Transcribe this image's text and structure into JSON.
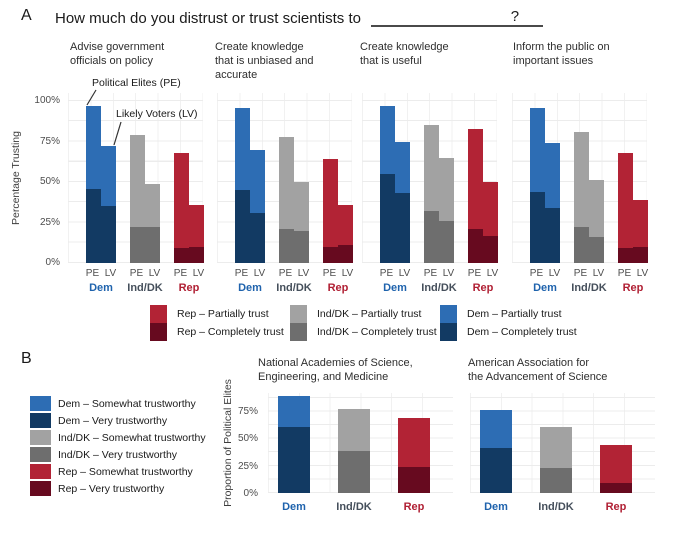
{
  "colors": {
    "dem": {
      "light": "#2d6db4",
      "dark": "#123a63",
      "text": "#1f63ad"
    },
    "ind": {
      "light": "#a2a2a2",
      "dark": "#6e6e6e",
      "text": "#454f5b"
    },
    "rep": {
      "light": "#b22335",
      "dark": "#670a1f",
      "text": "#b01f33"
    },
    "grid": "#ececec",
    "tick_text": "#4d4d4d",
    "axis_label": "#3d3d3d",
    "title_text": "#1a1a1a",
    "underline": "#4a4a4a"
  },
  "panel_a": {
    "label": "A",
    "title": "How much do you distrust or trust scientists to",
    "title_suffix": "?",
    "ylabel": "Percentage Trusting",
    "yticks": [
      "100%",
      "75%",
      "50%",
      "25%",
      "0%"
    ],
    "annotations": {
      "pe": "Political Elites (PE)",
      "lv": "Likely Voters (LV)"
    },
    "legend": {
      "columns": [
        {
          "items": [
            {
              "label": "Rep – Partially trust",
              "party": "rep",
              "shade": "light"
            },
            {
              "label": "Rep – Completely trust",
              "party": "rep",
              "shade": "dark"
            }
          ]
        },
        {
          "items": [
            {
              "label": "Ind/DK – Partially trust",
              "party": "ind",
              "shade": "light"
            },
            {
              "label": "Ind/DK – Completely trust",
              "party": "ind",
              "shade": "dark"
            }
          ]
        },
        {
          "items": [
            {
              "label": "Dem – Partially trust",
              "party": "dem",
              "shade": "light"
            },
            {
              "label": "Dem – Completely trust",
              "party": "dem",
              "shade": "dark"
            }
          ]
        }
      ]
    }
  },
  "panel_b": {
    "label": "B",
    "ylabel": "Proportion of Political Elites",
    "yticks": [
      "75%",
      "50%",
      "25%",
      "0%"
    ],
    "legend": [
      {
        "label": "Dem – Somewhat trustworthy",
        "party": "dem",
        "shade": "light"
      },
      {
        "label": "Dem – Very trustworthy",
        "party": "dem",
        "shade": "dark"
      },
      {
        "label": "Ind/DK – Somewhat trustworthy",
        "party": "ind",
        "shade": "light"
      },
      {
        "label": "Ind/DK – Very trustworthy",
        "party": "ind",
        "shade": "dark"
      },
      {
        "label": "Rep – Somewhat trustworthy",
        "party": "rep",
        "shade": "light"
      },
      {
        "label": "Rep – Very trustworthy",
        "party": "rep",
        "shade": "dark"
      }
    ]
  },
  "chart_data": [
    {
      "id": "a1",
      "panel": "A",
      "type": "bar",
      "stacked": true,
      "title": "Advise government officials on policy",
      "title_lines": [
        "Advise government",
        "officials on policy"
      ],
      "ylabel": "Percentage Trusting",
      "ylim": [
        0,
        100
      ],
      "yticks": [
        0,
        25,
        50,
        75,
        100
      ],
      "stack_labels": [
        "Completely trust",
        "Partially trust"
      ],
      "groups": [
        {
          "name": "Dem",
          "party": "dem",
          "bars": [
            {
              "x": "PE",
              "completely": 46,
              "total": 97
            },
            {
              "x": "LV",
              "completely": 35,
              "total": 72
            }
          ]
        },
        {
          "name": "Ind/DK",
          "party": "ind",
          "bars": [
            {
              "x": "PE",
              "completely": 22,
              "total": 79
            },
            {
              "x": "LV",
              "completely": 22,
              "total": 49
            }
          ]
        },
        {
          "name": "Rep",
          "party": "rep",
          "bars": [
            {
              "x": "PE",
              "completely": 9,
              "total": 68
            },
            {
              "x": "LV",
              "completely": 10,
              "total": 36
            }
          ]
        }
      ]
    },
    {
      "id": "a2",
      "panel": "A",
      "type": "bar",
      "stacked": true,
      "title": "Create knowledge that is unbiased and accurate",
      "title_lines": [
        "Create knowledge",
        "that is unbiased and",
        "accurate"
      ],
      "ylabel": "Percentage Trusting",
      "ylim": [
        0,
        100
      ],
      "yticks": [
        0,
        25,
        50,
        75,
        100
      ],
      "stack_labels": [
        "Completely trust",
        "Partially trust"
      ],
      "groups": [
        {
          "name": "Dem",
          "party": "dem",
          "bars": [
            {
              "x": "PE",
              "completely": 45,
              "total": 96
            },
            {
              "x": "LV",
              "completely": 31,
              "total": 70
            }
          ]
        },
        {
          "name": "Ind/DK",
          "party": "ind",
          "bars": [
            {
              "x": "PE",
              "completely": 21,
              "total": 78
            },
            {
              "x": "LV",
              "completely": 20,
              "total": 50
            }
          ]
        },
        {
          "name": "Rep",
          "party": "rep",
          "bars": [
            {
              "x": "PE",
              "completely": 10,
              "total": 64
            },
            {
              "x": "LV",
              "completely": 11,
              "total": 36
            }
          ]
        }
      ]
    },
    {
      "id": "a3",
      "panel": "A",
      "type": "bar",
      "stacked": true,
      "title": "Create knowledge that is useful",
      "title_lines": [
        "Create knowledge",
        "that is useful"
      ],
      "ylabel": "Percentage Trusting",
      "ylim": [
        0,
        100
      ],
      "yticks": [
        0,
        25,
        50,
        75,
        100
      ],
      "stack_labels": [
        "Completely trust",
        "Partially trust"
      ],
      "groups": [
        {
          "name": "Dem",
          "party": "dem",
          "bars": [
            {
              "x": "PE",
              "completely": 55,
              "total": 97
            },
            {
              "x": "LV",
              "completely": 43,
              "total": 75
            }
          ]
        },
        {
          "name": "Ind/DK",
          "party": "ind",
          "bars": [
            {
              "x": "PE",
              "completely": 32,
              "total": 85
            },
            {
              "x": "LV",
              "completely": 26,
              "total": 65
            }
          ]
        },
        {
          "name": "Rep",
          "party": "rep",
          "bars": [
            {
              "x": "PE",
              "completely": 21,
              "total": 83
            },
            {
              "x": "LV",
              "completely": 17,
              "total": 50
            }
          ]
        }
      ]
    },
    {
      "id": "a4",
      "panel": "A",
      "type": "bar",
      "stacked": true,
      "title": "Inform the public on important issues",
      "title_lines": [
        "Inform the public on",
        "important issues"
      ],
      "ylabel": "Percentage Trusting",
      "ylim": [
        0,
        100
      ],
      "yticks": [
        0,
        25,
        50,
        75,
        100
      ],
      "stack_labels": [
        "Completely trust",
        "Partially trust"
      ],
      "groups": [
        {
          "name": "Dem",
          "party": "dem",
          "bars": [
            {
              "x": "PE",
              "completely": 44,
              "total": 96
            },
            {
              "x": "LV",
              "completely": 34,
              "total": 74
            }
          ]
        },
        {
          "name": "Ind/DK",
          "party": "ind",
          "bars": [
            {
              "x": "PE",
              "completely": 22,
              "total": 81
            },
            {
              "x": "LV",
              "completely": 16,
              "total": 51
            }
          ]
        },
        {
          "name": "Rep",
          "party": "rep",
          "bars": [
            {
              "x": "PE",
              "completely": 9,
              "total": 68
            },
            {
              "x": "LV",
              "completely": 10,
              "total": 39
            }
          ]
        }
      ]
    },
    {
      "id": "b1",
      "panel": "B",
      "type": "bar",
      "stacked": true,
      "title": "National Academies of Science, Engineering, and Medicine",
      "title_lines": [
        "National Academies of Science,",
        "Engineering, and Medicine"
      ],
      "ylabel": "Proportion of Political Elites",
      "ylim": [
        0,
        100
      ],
      "yticks": [
        0,
        25,
        50,
        75
      ],
      "stack_labels": [
        "Very trustworthy",
        "Somewhat trustworthy"
      ],
      "groups": [
        {
          "name": "Dem",
          "party": "dem",
          "bars": [
            {
              "x": "Dem",
              "very": 61,
              "total": 89
            }
          ]
        },
        {
          "name": "Ind/DK",
          "party": "ind",
          "bars": [
            {
              "x": "Ind/DK",
              "very": 39,
              "total": 77
            }
          ]
        },
        {
          "name": "Rep",
          "party": "rep",
          "bars": [
            {
              "x": "Rep",
              "very": 24,
              "total": 69
            }
          ]
        }
      ]
    },
    {
      "id": "b2",
      "panel": "B",
      "type": "bar",
      "stacked": true,
      "title": "American Association for the Advancement of Science",
      "title_lines": [
        "American Association for",
        "the Advancement of Science"
      ],
      "ylabel": "Proportion of Political Elites",
      "ylim": [
        0,
        100
      ],
      "yticks": [
        0,
        25,
        50,
        75
      ],
      "stack_labels": [
        "Very trustworthy",
        "Somewhat trustworthy"
      ],
      "groups": [
        {
          "name": "Dem",
          "party": "dem",
          "bars": [
            {
              "x": "Dem",
              "very": 41,
              "total": 76
            }
          ]
        },
        {
          "name": "Ind/DK",
          "party": "ind",
          "bars": [
            {
              "x": "Ind/DK",
              "very": 23,
              "total": 61
            }
          ]
        },
        {
          "name": "Rep",
          "party": "rep",
          "bars": [
            {
              "x": "Rep",
              "very": 9,
              "total": 44
            }
          ]
        }
      ]
    }
  ]
}
